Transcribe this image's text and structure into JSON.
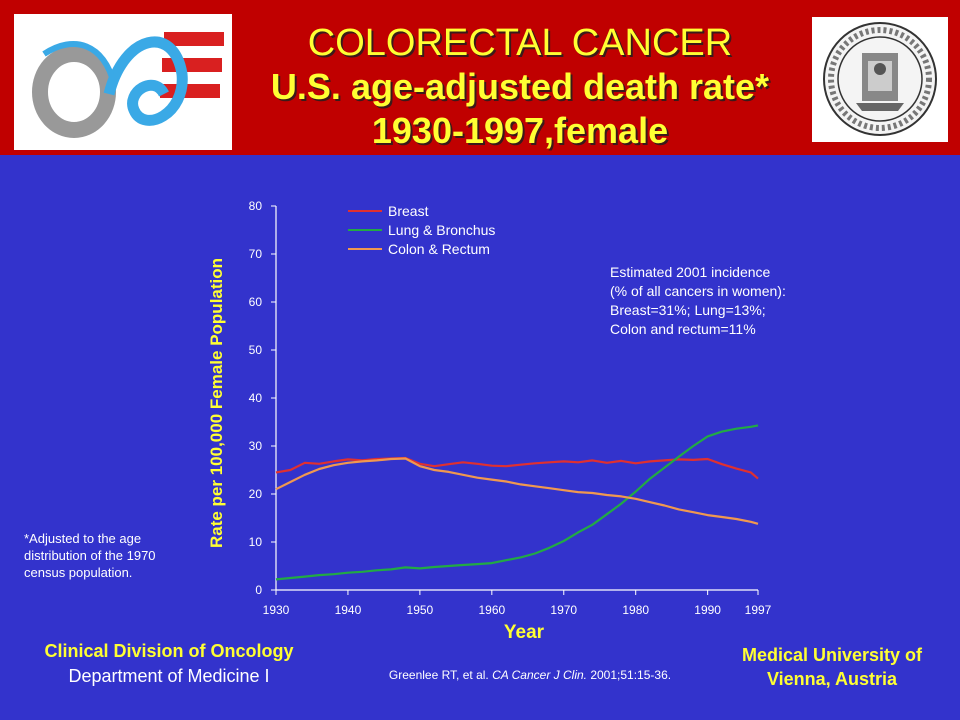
{
  "header": {
    "title_line1": "COLORECTAL CANCER",
    "title_line2": "U.S. age-adjusted death rate*",
    "title_line3": "1930-1997,female",
    "background": "#c00000",
    "title_color": "#ffff33"
  },
  "logos": {
    "left": "oncology-logo",
    "right": "university-seal"
  },
  "annotation": {
    "line1": "Estimated 2001 incidence",
    "line2": "(% of all cancers in women):",
    "line3": "Breast=31%; Lung=13%;",
    "line4": "Colon and rectum=11%"
  },
  "footnote": {
    "line1": "*Adjusted to the age",
    "line2": "distribution of the 1970",
    "line3": "census population."
  },
  "footer": {
    "left_line1": "Clinical Division of Oncology",
    "left_line2": "Department of Medicine I",
    "right_line1": "Medical University of",
    "right_line2": "Vienna, Austria",
    "citation_prefix": "Greenlee RT, et al. ",
    "citation_journal": "CA Cancer J Clin.",
    "citation_suffix": " 2001;51:15-36."
  },
  "chart_data": {
    "type": "line",
    "title": "",
    "xlabel": "Year",
    "ylabel": "Rate per 100,000 Female Population",
    "xlim": [
      1930,
      1997
    ],
    "ylim": [
      0,
      80
    ],
    "x_ticks": [
      1930,
      1940,
      1950,
      1960,
      1970,
      1980,
      1990,
      1997
    ],
    "y_ticks": [
      0,
      10,
      20,
      30,
      40,
      50,
      60,
      70,
      80
    ],
    "grid": false,
    "legend_position": "top-left",
    "x": [
      1930,
      1932,
      1934,
      1936,
      1938,
      1940,
      1942,
      1944,
      1946,
      1948,
      1950,
      1952,
      1954,
      1956,
      1958,
      1960,
      1962,
      1964,
      1966,
      1968,
      1970,
      1972,
      1974,
      1976,
      1978,
      1980,
      1982,
      1984,
      1986,
      1988,
      1990,
      1992,
      1994,
      1996,
      1997
    ],
    "series": [
      {
        "name": "Breast",
        "color": "#e03030",
        "values": [
          24.5,
          25.0,
          26.5,
          26.3,
          26.8,
          27.2,
          27.0,
          27.3,
          27.4,
          27.5,
          26.3,
          25.8,
          26.2,
          26.6,
          26.3,
          25.9,
          25.8,
          26.1,
          26.4,
          26.6,
          26.8,
          26.6,
          27.0,
          26.5,
          26.9,
          26.4,
          26.8,
          27.0,
          27.2,
          27.1,
          27.3,
          26.2,
          25.3,
          24.5,
          23.2
        ]
      },
      {
        "name": "Lung & Bronchus",
        "color": "#22aa44",
        "values": [
          2.2,
          2.5,
          2.8,
          3.1,
          3.3,
          3.6,
          3.8,
          4.1,
          4.3,
          4.7,
          4.5,
          4.8,
          5.0,
          5.2,
          5.4,
          5.6,
          6.2,
          6.8,
          7.6,
          8.8,
          10.2,
          12.0,
          13.6,
          15.8,
          18.0,
          20.5,
          23.2,
          25.5,
          27.8,
          30.0,
          32.0,
          33.0,
          33.6,
          34.0,
          34.3
        ]
      },
      {
        "name": "Colon & Rectum",
        "color": "#f09850",
        "values": [
          21.0,
          22.5,
          24.0,
          25.2,
          26.0,
          26.5,
          26.8,
          27.0,
          27.3,
          27.4,
          25.8,
          25.0,
          24.6,
          24.0,
          23.4,
          23.0,
          22.6,
          22.0,
          21.6,
          21.2,
          20.8,
          20.4,
          20.2,
          19.8,
          19.5,
          19.0,
          18.3,
          17.6,
          16.8,
          16.2,
          15.6,
          15.2,
          14.8,
          14.2,
          13.8
        ]
      }
    ]
  }
}
